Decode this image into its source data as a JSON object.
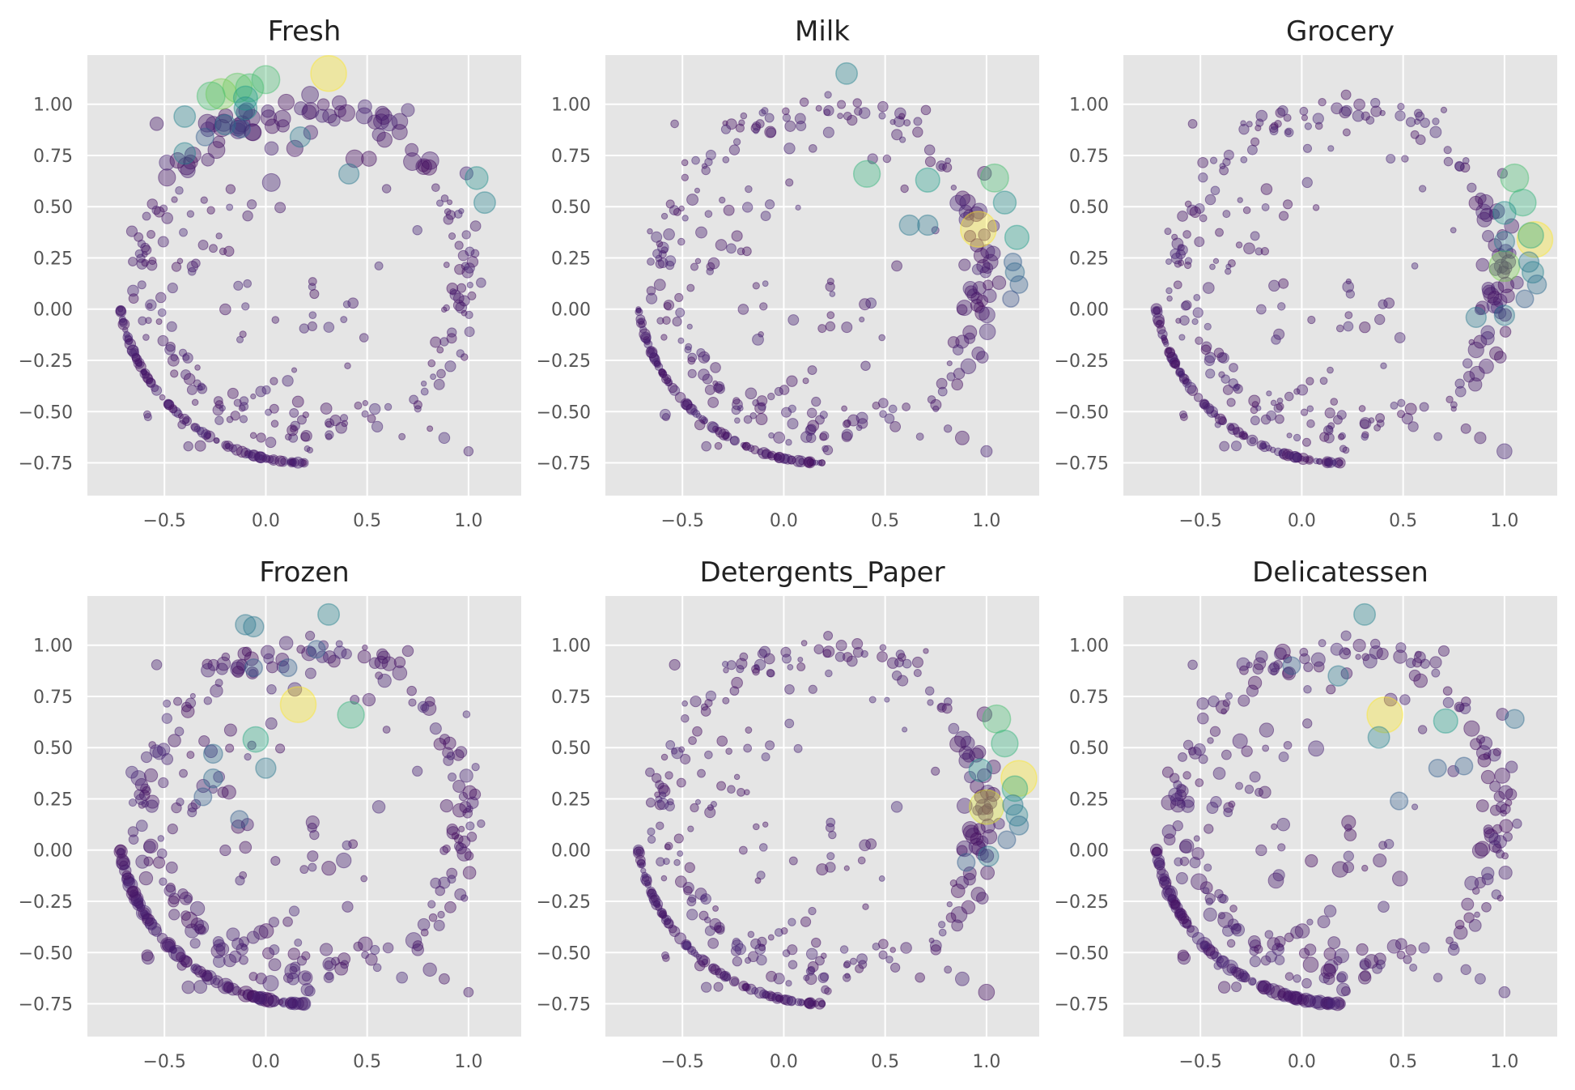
{
  "chart_data": [
    {
      "type": "scatter",
      "title": "Fresh",
      "xticks": [
        "−0.5",
        "0.0",
        "0.5",
        "1.0"
      ],
      "yticks": [
        "1.00",
        "0.75",
        "0.50",
        "0.25",
        "0.00",
        "−0.25",
        "−0.50",
        "−0.75"
      ],
      "xlim": [
        -0.88,
        1.26
      ],
      "ylim": [
        -0.91,
        1.24
      ],
      "grid": true,
      "highlights": [
        [
          0.31,
          1.15,
          0.0
        ],
        [
          0.0,
          1.12,
          0.3
        ],
        [
          -0.08,
          1.08,
          0.3
        ],
        [
          -0.14,
          1.08,
          0.25
        ],
        [
          -0.22,
          1.05,
          0.2
        ],
        [
          -0.27,
          1.04,
          0.3
        ],
        [
          -0.1,
          1.03,
          0.45
        ],
        [
          -0.1,
          0.98,
          0.5
        ],
        [
          -0.4,
          0.94,
          0.55
        ],
        [
          -0.2,
          0.9,
          0.6
        ],
        [
          -0.4,
          0.76,
          0.55
        ],
        [
          0.17,
          0.84,
          0.6
        ],
        [
          1.04,
          0.64,
          0.5
        ],
        [
          1.08,
          0.52,
          0.55
        ],
        [
          0.41,
          0.66,
          0.6
        ],
        [
          -0.3,
          0.84,
          0.7
        ],
        [
          -0.12,
          0.88,
          0.7
        ]
      ]
    },
    {
      "type": "scatter",
      "title": "Milk",
      "xticks": [
        "−0.5",
        "0.0",
        "0.5",
        "1.0"
      ],
      "yticks": [
        "1.00",
        "0.75",
        "0.50",
        "0.25",
        "0.00",
        "−0.25",
        "−0.50",
        "−0.75"
      ],
      "xlim": [
        -0.88,
        1.26
      ],
      "ylim": [
        -0.91,
        1.24
      ],
      "grid": true,
      "highlights": [
        [
          0.96,
          0.39,
          0.0
        ],
        [
          1.04,
          0.64,
          0.3
        ],
        [
          0.41,
          0.66,
          0.35
        ],
        [
          0.71,
          0.63,
          0.45
        ],
        [
          1.09,
          0.52,
          0.5
        ],
        [
          1.15,
          0.35,
          0.45
        ],
        [
          0.31,
          1.15,
          0.55
        ],
        [
          1.14,
          0.18,
          0.65
        ],
        [
          1.13,
          0.23,
          0.7
        ],
        [
          0.62,
          0.41,
          0.6
        ],
        [
          0.71,
          0.41,
          0.6
        ],
        [
          1.16,
          0.12,
          0.7
        ],
        [
          1.12,
          0.05,
          0.75
        ]
      ]
    },
    {
      "type": "scatter",
      "title": "Grocery",
      "xticks": [
        "−0.5",
        "0.0",
        "0.5",
        "1.0"
      ],
      "yticks": [
        "1.00",
        "0.75",
        "0.50",
        "0.25",
        "0.00",
        "−0.25",
        "−0.50",
        "−0.75"
      ],
      "xlim": [
        -0.88,
        1.26
      ],
      "ylim": [
        -0.91,
        1.24
      ],
      "grid": true,
      "highlights": [
        [
          1.15,
          0.34,
          0.0
        ],
        [
          1.0,
          0.21,
          0.2
        ],
        [
          1.05,
          0.64,
          0.3
        ],
        [
          1.09,
          0.52,
          0.35
        ],
        [
          1.13,
          0.36,
          0.4
        ],
        [
          1.0,
          0.47,
          0.5
        ],
        [
          1.14,
          0.18,
          0.55
        ],
        [
          1.12,
          0.23,
          0.6
        ],
        [
          1.0,
          0.33,
          0.6
        ],
        [
          1.16,
          0.12,
          0.65
        ],
        [
          1.1,
          0.05,
          0.7
        ],
        [
          0.86,
          -0.04,
          0.6
        ],
        [
          1.0,
          -0.03,
          0.6
        ]
      ]
    },
    {
      "type": "scatter",
      "title": "Frozen",
      "xticks": [
        "−0.5",
        "0.0",
        "0.5",
        "1.0"
      ],
      "yticks": [
        "1.00",
        "0.75",
        "0.50",
        "0.25",
        "0.00",
        "−0.25",
        "−0.50",
        "−0.75"
      ],
      "xlim": [
        -0.88,
        1.26
      ],
      "ylim": [
        -0.91,
        1.24
      ],
      "grid": true,
      "highlights": [
        [
          0.16,
          0.71,
          0.0
        ],
        [
          0.42,
          0.66,
          0.35
        ],
        [
          -0.05,
          0.54,
          0.4
        ],
        [
          0.31,
          1.15,
          0.55
        ],
        [
          -0.1,
          1.1,
          0.6
        ],
        [
          0.0,
          0.4,
          0.6
        ],
        [
          -0.26,
          0.47,
          0.65
        ],
        [
          -0.06,
          1.09,
          0.6
        ],
        [
          -0.26,
          0.35,
          0.65
        ],
        [
          -0.13,
          0.15,
          0.7
        ],
        [
          -0.31,
          0.26,
          0.7
        ],
        [
          0.25,
          0.98,
          0.7
        ],
        [
          -0.06,
          0.89,
          0.7
        ],
        [
          0.11,
          0.89,
          0.7
        ]
      ]
    },
    {
      "type": "scatter",
      "title": "Detergents_Paper",
      "xticks": [
        "−0.5",
        "0.0",
        "0.5",
        "1.0"
      ],
      "yticks": [
        "1.00",
        "0.75",
        "0.50",
        "0.25",
        "0.00",
        "−0.25",
        "−0.50",
        "−0.75"
      ],
      "xlim": [
        -0.88,
        1.26
      ],
      "ylim": [
        -0.91,
        1.24
      ],
      "grid": true,
      "highlights": [
        [
          1.16,
          0.35,
          0.0
        ],
        [
          1.0,
          0.21,
          0.05
        ],
        [
          1.05,
          0.64,
          0.3
        ],
        [
          1.09,
          0.52,
          0.35
        ],
        [
          1.14,
          0.3,
          0.4
        ],
        [
          0.97,
          0.39,
          0.5
        ],
        [
          1.15,
          0.17,
          0.55
        ],
        [
          1.13,
          0.22,
          0.6
        ],
        [
          1.01,
          -0.03,
          0.6
        ],
        [
          1.16,
          0.12,
          0.65
        ],
        [
          1.1,
          0.05,
          0.7
        ],
        [
          0.9,
          -0.06,
          0.7
        ]
      ]
    },
    {
      "type": "scatter",
      "title": "Delicatessen",
      "xticks": [
        "−0.5",
        "0.0",
        "0.5",
        "1.0"
      ],
      "yticks": [
        "1.00",
        "0.75",
        "0.50",
        "0.25",
        "0.00",
        "−0.25",
        "−0.50",
        "−0.75"
      ],
      "xlim": [
        -0.88,
        1.26
      ],
      "ylim": [
        -0.91,
        1.24
      ],
      "grid": true,
      "highlights": [
        [
          0.41,
          0.66,
          0.0
        ],
        [
          0.71,
          0.63,
          0.45
        ],
        [
          0.31,
          1.15,
          0.55
        ],
        [
          0.38,
          0.55,
          0.55
        ],
        [
          0.18,
          0.85,
          0.6
        ],
        [
          1.05,
          0.64,
          0.65
        ],
        [
          0.48,
          0.24,
          0.7
        ],
        [
          0.8,
          0.41,
          0.7
        ],
        [
          0.67,
          0.4,
          0.7
        ],
        [
          -0.05,
          0.9,
          0.7
        ]
      ]
    }
  ]
}
